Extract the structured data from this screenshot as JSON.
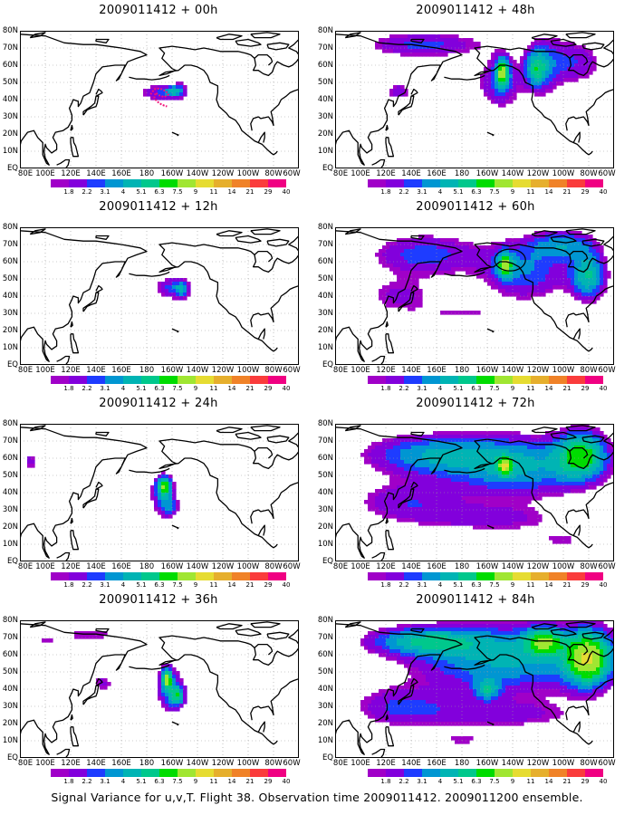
{
  "figure": {
    "caption": "Signal Variance for u,v,T. Flight 38. Observation time 2009011412. 2009011200 ensemble."
  },
  "panels": [
    {
      "title": "2009011412 + 00h",
      "lead_hours": 0,
      "track_marker": true,
      "circle_marker": false
    },
    {
      "title": "2009011412 + 48h",
      "lead_hours": 48,
      "track_marker": false,
      "circle_marker": false
    },
    {
      "title": "2009011412 + 12h",
      "lead_hours": 12,
      "track_marker": false,
      "circle_marker": false
    },
    {
      "title": "2009011412 + 60h",
      "lead_hours": 60,
      "track_marker": false,
      "circle_marker": true
    },
    {
      "title": "2009011412 + 24h",
      "lead_hours": 24,
      "track_marker": false,
      "circle_marker": false
    },
    {
      "title": "2009011412 + 72h",
      "lead_hours": 72,
      "track_marker": false,
      "circle_marker": false
    },
    {
      "title": "2009011412 + 36h",
      "lead_hours": 36,
      "track_marker": false,
      "circle_marker": false
    },
    {
      "title": "2009011412 + 84h",
      "lead_hours": 84,
      "track_marker": false,
      "circle_marker": false
    }
  ],
  "axes": {
    "x_tick_labels": [
      "80E",
      "100E",
      "120E",
      "140E",
      "160E",
      "180",
      "160W",
      "140W",
      "120W",
      "100W",
      "80W",
      "60W"
    ],
    "y_tick_labels": [
      "EQ",
      "10N",
      "20N",
      "30N",
      "40N",
      "50N",
      "60N",
      "70N",
      "80N"
    ],
    "lon_range": [
      "80E",
      "60W"
    ],
    "lat_range": [
      "EQ",
      "80N"
    ],
    "grid": "dotted"
  },
  "colorbar": {
    "labels": [
      "1.8",
      "2.2",
      "3.1",
      "4",
      "5.1",
      "6.3",
      "7.5",
      "9",
      "11",
      "14",
      "21",
      "29",
      "40"
    ],
    "colors": [
      "#a000c8",
      "#8200dc",
      "#1e3cff",
      "#0096d2",
      "#00b4b4",
      "#00c88c",
      "#00dc00",
      "#a0e632",
      "#e6dc32",
      "#e6af2d",
      "#f08228",
      "#fa3c3c",
      "#f00082"
    ]
  },
  "colors": {
    "no_data": "#ffffff",
    "coastline": "#000000",
    "track_marker": "#f0147a",
    "grid": "#9a9a9a"
  }
}
